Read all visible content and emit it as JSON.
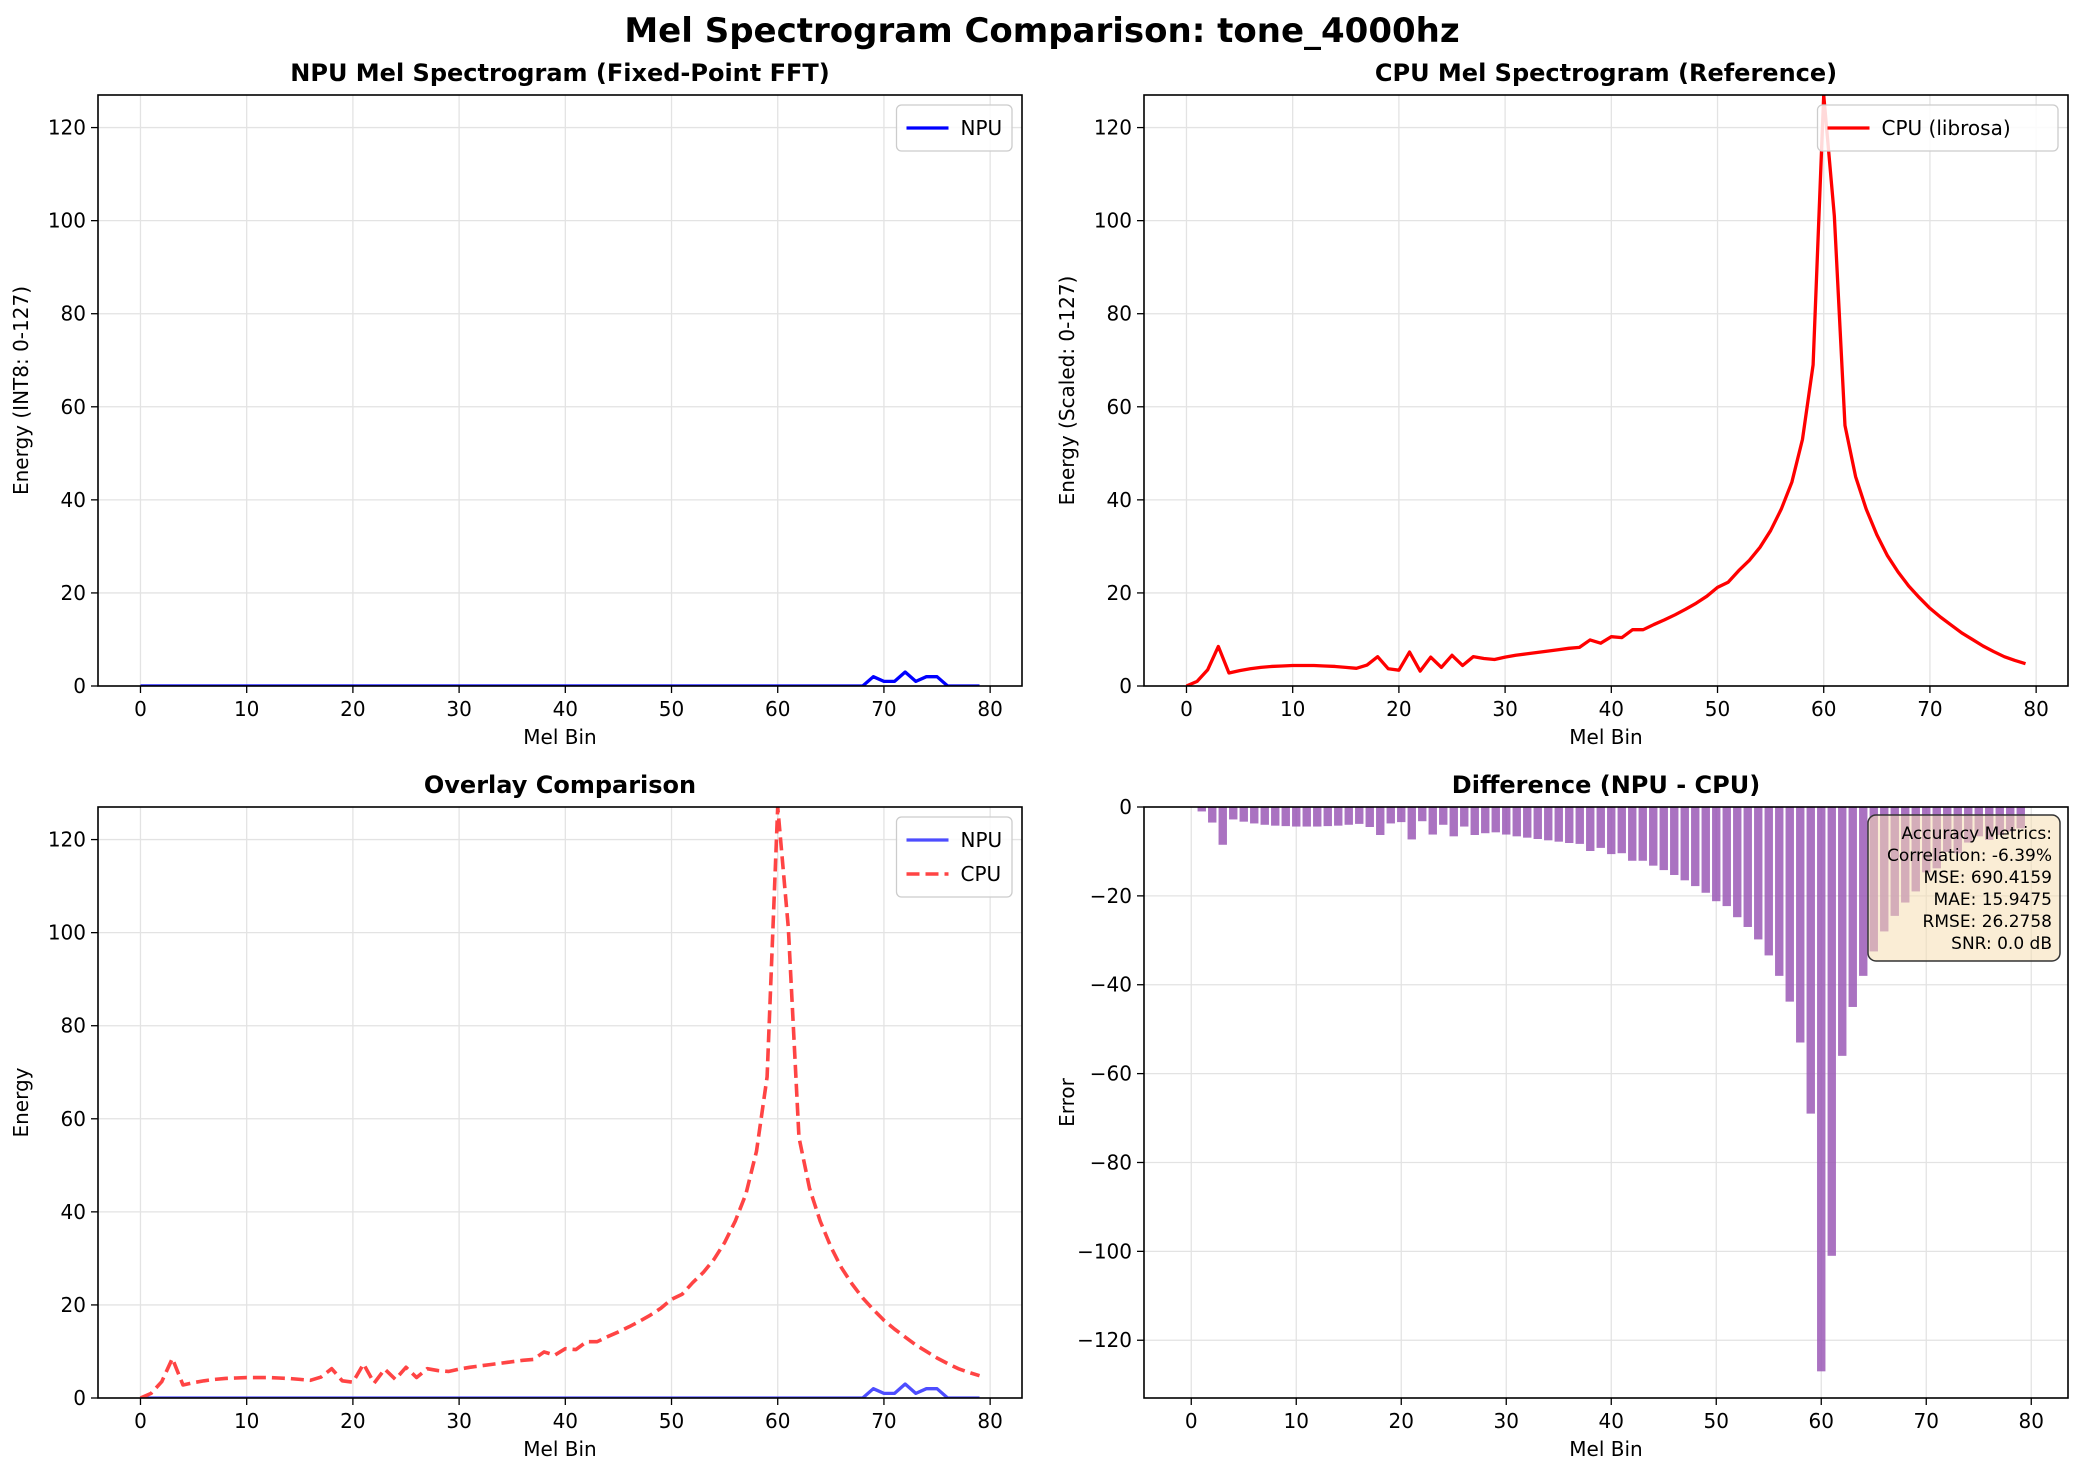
{
  "figure": {
    "title": "Mel Spectrogram Comparison: tone_4000hz"
  },
  "chart_data": [
    {
      "id": "npu",
      "type": "line",
      "title": "NPU Mel Spectrogram (Fixed-Point FFT)",
      "xlabel": "Mel Bin",
      "ylabel": "Energy (INT8: 0-127)",
      "xlim": [
        -4,
        83
      ],
      "ylim": [
        0,
        127
      ],
      "xticks": [
        0,
        10,
        20,
        30,
        40,
        50,
        60,
        70,
        80
      ],
      "yticks": [
        0,
        20,
        40,
        60,
        80,
        100,
        120
      ],
      "legend_position": "top-right",
      "grid": true,
      "series": [
        {
          "name": "NPU",
          "color": "#0000ff",
          "dash": "solid",
          "width": 3.3,
          "values": [
            0,
            0,
            0,
            0,
            0,
            0,
            0,
            0,
            0,
            0,
            0,
            0,
            0,
            0,
            0,
            0,
            0,
            0,
            0,
            0,
            0,
            0,
            0,
            0,
            0,
            0,
            0,
            0,
            0,
            0,
            0,
            0,
            0,
            0,
            0,
            0,
            0,
            0,
            0,
            0,
            0,
            0,
            0,
            0,
            0,
            0,
            0,
            0,
            0,
            0,
            0,
            0,
            0,
            0,
            0,
            0,
            0,
            0,
            0,
            0,
            0,
            0,
            0,
            0,
            0,
            0,
            0,
            0,
            0,
            2,
            1,
            1,
            3,
            1,
            2,
            2,
            0,
            0,
            0,
            0
          ]
        }
      ]
    },
    {
      "id": "cpu",
      "type": "line",
      "title": "CPU Mel Spectrogram (Reference)",
      "xlabel": "Mel Bin",
      "ylabel": "Energy (Scaled: 0-127)",
      "xlim": [
        -4,
        83
      ],
      "ylim": [
        0,
        127
      ],
      "xticks": [
        0,
        10,
        20,
        30,
        40,
        50,
        60,
        70,
        80
      ],
      "yticks": [
        0,
        20,
        40,
        60,
        80,
        100,
        120
      ],
      "legend_position": "top-right",
      "grid": true,
      "series": [
        {
          "name": "CPU (librosa)",
          "color": "#ff0000",
          "dash": "solid",
          "width": 3.3,
          "values": [
            0,
            1,
            3.5,
            8.5,
            2.8,
            3.3,
            3.7,
            4,
            4.2,
            4.3,
            4.4,
            4.4,
            4.4,
            4.3,
            4.2,
            4,
            3.8,
            4.5,
            6.3,
            3.7,
            3.4,
            7.3,
            3.2,
            6.2,
            4,
            6.6,
            4.4,
            6.3,
            5.9,
            5.7,
            6.2,
            6.6,
            6.9,
            7.2,
            7.5,
            7.8,
            8.1,
            8.3,
            9.9,
            9.2,
            10.6,
            10.4,
            12.1,
            12.1,
            13.2,
            14.2,
            15.3,
            16.5,
            17.8,
            19.3,
            21.2,
            22.3,
            24.8,
            27,
            29.8,
            33.4,
            38,
            43.8,
            53,
            69,
            127,
            101,
            56,
            45,
            38,
            32.5,
            28,
            24.5,
            21.5,
            19,
            16.7,
            14.8,
            13.1,
            11.4,
            10,
            8.6,
            7.4,
            6.3,
            5.5,
            4.8
          ]
        }
      ]
    },
    {
      "id": "overlay",
      "type": "line",
      "title": "Overlay Comparison",
      "xlabel": "Mel Bin",
      "ylabel": "Energy",
      "xlim": [
        -4,
        83
      ],
      "ylim": [
        0,
        127
      ],
      "xticks": [
        0,
        10,
        20,
        30,
        40,
        50,
        60,
        70,
        80
      ],
      "yticks": [
        0,
        20,
        40,
        60,
        80,
        100,
        120
      ],
      "legend_position": "top-right",
      "grid": true,
      "series": [
        {
          "name": "NPU",
          "color": "#4d4dff",
          "dash": "solid",
          "width": 3.3,
          "values": [
            0,
            0,
            0,
            0,
            0,
            0,
            0,
            0,
            0,
            0,
            0,
            0,
            0,
            0,
            0,
            0,
            0,
            0,
            0,
            0,
            0,
            0,
            0,
            0,
            0,
            0,
            0,
            0,
            0,
            0,
            0,
            0,
            0,
            0,
            0,
            0,
            0,
            0,
            0,
            0,
            0,
            0,
            0,
            0,
            0,
            0,
            0,
            0,
            0,
            0,
            0,
            0,
            0,
            0,
            0,
            0,
            0,
            0,
            0,
            0,
            0,
            0,
            0,
            0,
            0,
            0,
            0,
            0,
            0,
            2,
            1,
            1,
            3,
            1,
            2,
            2,
            0,
            0,
            0,
            0
          ]
        },
        {
          "name": "CPU",
          "color": "#ff4444",
          "dash": "dashed",
          "width": 3.6,
          "values": [
            0,
            1,
            3.5,
            8.5,
            2.8,
            3.3,
            3.7,
            4,
            4.2,
            4.3,
            4.4,
            4.4,
            4.4,
            4.3,
            4.2,
            4,
            3.8,
            4.5,
            6.3,
            3.7,
            3.4,
            7.3,
            3.2,
            6.2,
            4,
            6.6,
            4.4,
            6.3,
            5.9,
            5.7,
            6.2,
            6.6,
            6.9,
            7.2,
            7.5,
            7.8,
            8.1,
            8.3,
            9.9,
            9.2,
            10.6,
            10.4,
            12.1,
            12.1,
            13.2,
            14.2,
            15.3,
            16.5,
            17.8,
            19.3,
            21.2,
            22.3,
            24.8,
            27,
            29.8,
            33.4,
            38,
            43.8,
            53,
            69,
            127,
            101,
            56,
            45,
            38,
            32.5,
            28,
            24.5,
            21.5,
            19,
            16.7,
            14.8,
            13.1,
            11.4,
            10,
            8.6,
            7.4,
            6.3,
            5.5,
            4.8
          ]
        }
      ]
    },
    {
      "id": "diff",
      "type": "bar",
      "title": "Difference (NPU - CPU)",
      "xlabel": "Mel Bin",
      "ylabel": "Error",
      "xlim": [
        -4.5,
        83.5
      ],
      "ylim": [
        -133,
        0
      ],
      "xticks": [
        0,
        10,
        20,
        30,
        40,
        50,
        60,
        70,
        80
      ],
      "yticks": [
        0,
        -20,
        -40,
        -60,
        -80,
        -100,
        -120
      ],
      "grid": true,
      "bar_color": "#9b59b6",
      "bar_opacity": 0.85,
      "values": [
        0,
        -1,
        -3.5,
        -8.5,
        -2.8,
        -3.3,
        -3.7,
        -4,
        -4.2,
        -4.3,
        -4.4,
        -4.4,
        -4.4,
        -4.3,
        -4.2,
        -4,
        -3.8,
        -4.5,
        -6.3,
        -3.7,
        -3.4,
        -7.3,
        -3.2,
        -6.2,
        -4,
        -6.6,
        -4.4,
        -6.3,
        -5.9,
        -5.7,
        -6.2,
        -6.6,
        -6.9,
        -7.2,
        -7.5,
        -7.8,
        -8.1,
        -8.3,
        -9.9,
        -9.2,
        -10.6,
        -10.4,
        -12.1,
        -12.1,
        -13.2,
        -14.2,
        -15.3,
        -16.5,
        -17.8,
        -19.3,
        -21.2,
        -22.3,
        -24.8,
        -27,
        -29.8,
        -33.4,
        -38,
        -43.8,
        -53,
        -69,
        -127,
        -101,
        -56,
        -45,
        -38,
        -32.5,
        -28,
        -24.5,
        -21.5,
        -19,
        -14.7,
        -13.8,
        -10.1,
        -10.4,
        -8,
        -6.6,
        -7.4,
        -6.3,
        -5.5,
        -4.8
      ],
      "metrics": {
        "heading": "Accuracy Metrics:",
        "lines": [
          "Correlation: -6.39%",
          "MSE: 690.4159",
          "MAE: 15.9475",
          "RMSE: 26.2758",
          "SNR: 0.0 dB"
        ]
      }
    }
  ]
}
